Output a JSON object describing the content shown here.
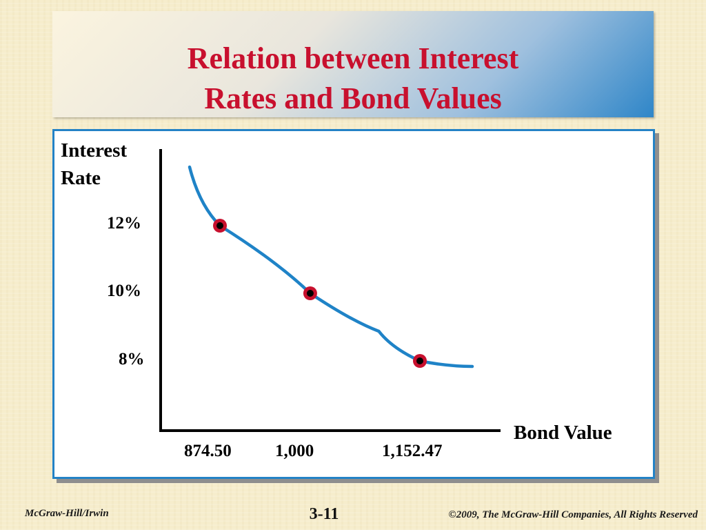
{
  "slide": {
    "title_line1": "Relation between Interest",
    "title_line2": "Rates and Bond Values",
    "page_number": "3-11",
    "footer_left": "McGraw-Hill/Irwin",
    "footer_right": "©2009, The McGraw-Hill Companies, All Rights Reserved"
  },
  "colors": {
    "title": "#c8102e",
    "curve": "#1f83c7",
    "marker_ring": "#c8102e",
    "frame": "#2382c6"
  },
  "chart_data": {
    "type": "line",
    "ylabel_line1": "Interest",
    "ylabel_line2": "Rate",
    "xlabel": "Bond Value",
    "x_ticks": [
      "874.50",
      "1,000",
      "1,152.47"
    ],
    "y_ticks": [
      "12%",
      "10%",
      "8%"
    ],
    "series": [
      {
        "x": [
          874.5,
          1000,
          1152.47
        ],
        "y": [
          12,
          10,
          8
        ]
      }
    ],
    "grid": false,
    "legend": "none"
  }
}
